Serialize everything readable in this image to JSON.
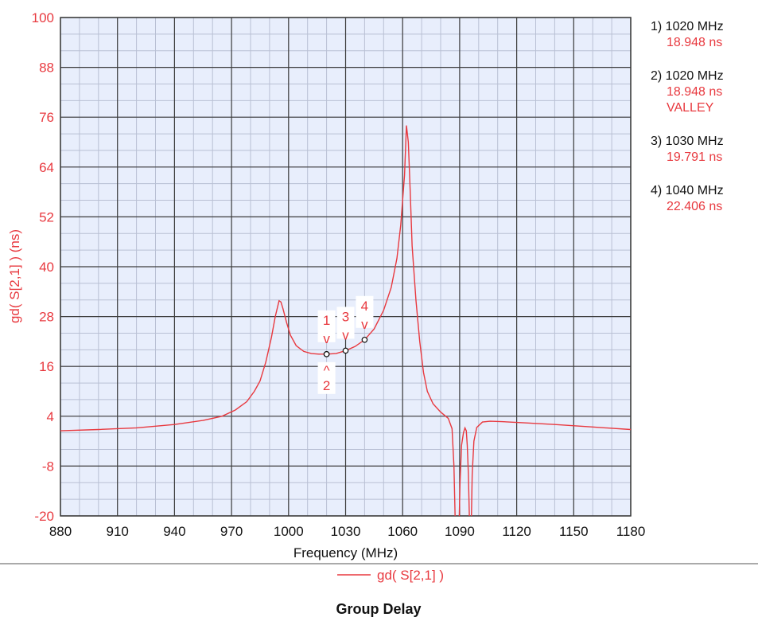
{
  "chart_data": {
    "type": "line",
    "title": "Group Delay",
    "xlabel": "Frequency (MHz)",
    "ylabel": "gd( S[2,1] ) (ns)",
    "xlim": [
      880,
      1180
    ],
    "ylim": [
      -20,
      100
    ],
    "xticks": [
      880,
      910,
      940,
      970,
      1000,
      1030,
      1060,
      1090,
      1120,
      1150,
      1180
    ],
    "yticks": [
      100,
      88,
      76,
      64,
      52,
      40,
      28,
      16,
      4,
      -8,
      -20
    ],
    "x_minor_step": 10,
    "y_minor_step": 4,
    "grid": true,
    "legend": "bottom-center",
    "series": [
      {
        "name": "gd( S[2,1] )",
        "color": "#e8393f",
        "points": [
          [
            880,
            0.5
          ],
          [
            900,
            0.8
          ],
          [
            920,
            1.2
          ],
          [
            940,
            2.0
          ],
          [
            955,
            3.0
          ],
          [
            965,
            4.0
          ],
          [
            972,
            5.5
          ],
          [
            978,
            7.5
          ],
          [
            982,
            10.0
          ],
          [
            985,
            12.5
          ],
          [
            988,
            17.0
          ],
          [
            991,
            23.0
          ],
          [
            993,
            28.0
          ],
          [
            995,
            31.8
          ],
          [
            996,
            31.5
          ],
          [
            997,
            30.0
          ],
          [
            999,
            26.5
          ],
          [
            1001,
            23.5
          ],
          [
            1004,
            21.0
          ],
          [
            1008,
            19.6
          ],
          [
            1012,
            19.1
          ],
          [
            1016,
            18.95
          ],
          [
            1020,
            18.948
          ],
          [
            1025,
            19.1
          ],
          [
            1030,
            19.791
          ],
          [
            1035,
            20.8
          ],
          [
            1040,
            22.406
          ],
          [
            1045,
            25.0
          ],
          [
            1050,
            29.5
          ],
          [
            1054,
            35.0
          ],
          [
            1057,
            42.0
          ],
          [
            1059,
            50.0
          ],
          [
            1061,
            62.0
          ],
          [
            1062,
            74.0
          ],
          [
            1063,
            70.0
          ],
          [
            1064,
            58.0
          ],
          [
            1065,
            45.0
          ],
          [
            1067,
            32.0
          ],
          [
            1069,
            22.0
          ],
          [
            1071,
            14.5
          ],
          [
            1073,
            10.0
          ],
          [
            1076,
            7.0
          ],
          [
            1080,
            5.0
          ],
          [
            1084,
            3.5
          ],
          [
            1086,
            1.0
          ],
          [
            1087,
            -8.0
          ],
          [
            1087.6,
            -20.0
          ]
        ],
        "points_segment_2": [
          [
            1089.8,
            -20.0
          ],
          [
            1090.2,
            -12.0
          ],
          [
            1091,
            -3.0
          ],
          [
            1092,
            0.0
          ],
          [
            1092.8,
            1.2
          ],
          [
            1093.5,
            0.5
          ],
          [
            1094,
            -3.0
          ],
          [
            1094.6,
            -10.0
          ],
          [
            1095.1,
            -20.0
          ]
        ],
        "points_segment_3": [
          [
            1096.2,
            -20.0
          ],
          [
            1096.6,
            -10.0
          ],
          [
            1097.5,
            -2.0
          ],
          [
            1099,
            1.3
          ],
          [
            1102,
            2.6
          ],
          [
            1106,
            2.8
          ],
          [
            1112,
            2.7
          ],
          [
            1125,
            2.4
          ],
          [
            1140,
            2.0
          ],
          [
            1160,
            1.4
          ],
          [
            1180,
            0.8
          ]
        ]
      }
    ],
    "markers": [
      {
        "id": "1",
        "freq": 1020,
        "value": 18.948,
        "label_above": true
      },
      {
        "id": "2",
        "freq": 1020,
        "value": 18.948,
        "label_above": false
      },
      {
        "id": "3",
        "freq": 1030,
        "value": 19.791,
        "label_above": true
      },
      {
        "id": "4",
        "freq": 1040,
        "value": 22.406,
        "label_above": true
      }
    ],
    "readouts": [
      {
        "head": "1) 1020 MHz",
        "value": "18.948 ns"
      },
      {
        "head": "2) 1020 MHz",
        "value": "18.948 ns",
        "note": "VALLEY"
      },
      {
        "head": "3) 1030 MHz",
        "value": "19.791 ns"
      },
      {
        "head": "4) 1040 MHz",
        "value": "22.406 ns"
      }
    ]
  },
  "colors": {
    "plot_bg": "#e8eefc",
    "major_grid": "#3d3d3d",
    "minor_grid": "#b9c0d4",
    "trace": "#e8393f",
    "axis_text": "#e8393f",
    "readout_head": "#111111",
    "readout_value": "#e8393f"
  },
  "icons": {
    "marker_up": "v",
    "marker_down": "^"
  }
}
